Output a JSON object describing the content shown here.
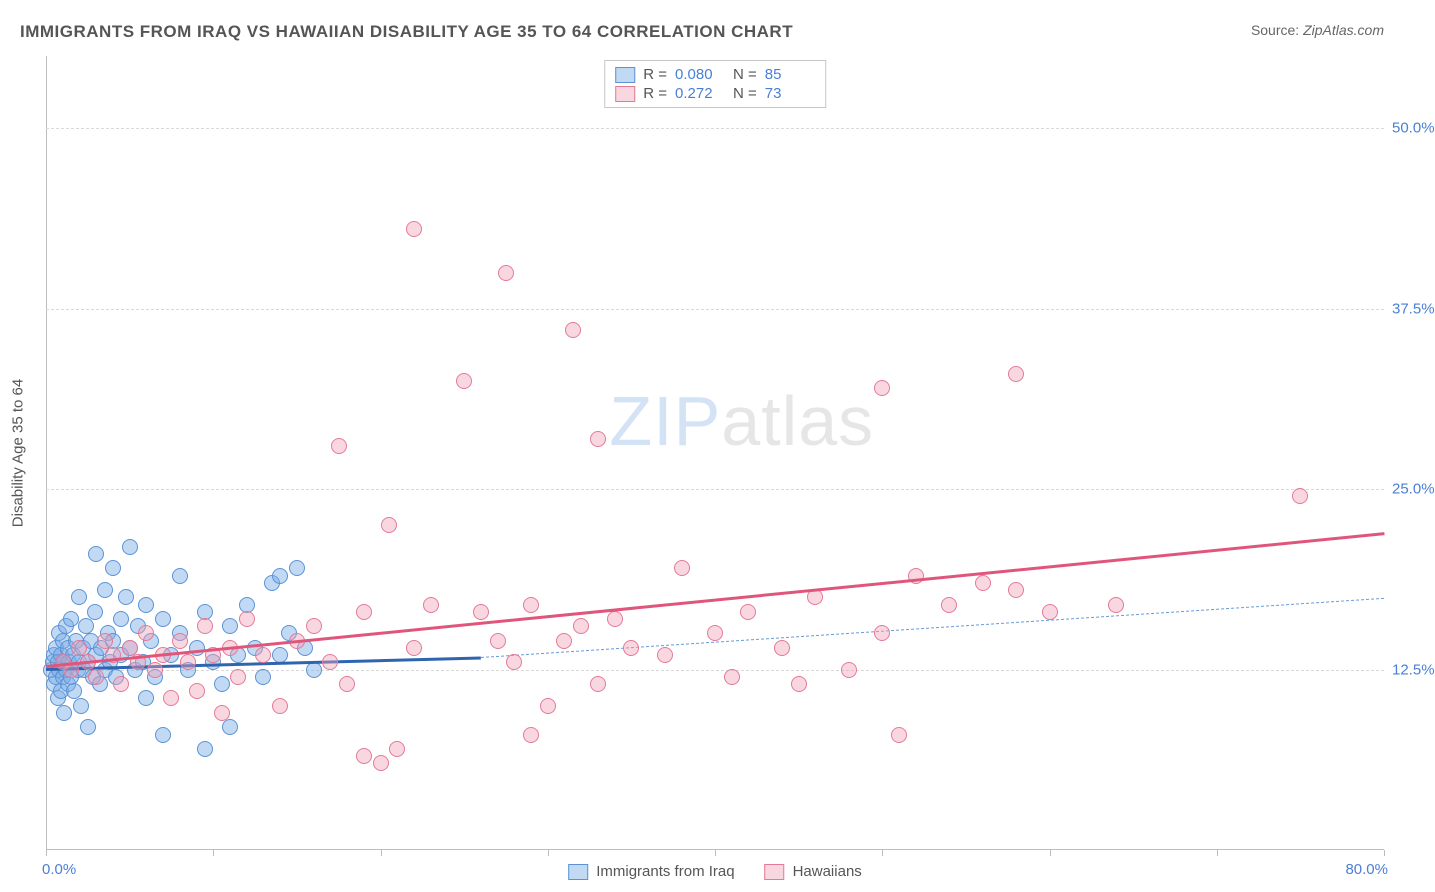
{
  "title": "IMMIGRANTS FROM IRAQ VS HAWAIIAN DISABILITY AGE 35 TO 64 CORRELATION CHART",
  "source_label": "Source:",
  "source_value": "ZipAtlas.com",
  "ylabel": "Disability Age 35 to 64",
  "watermark_a": "ZIP",
  "watermark_b": "atlas",
  "chart": {
    "type": "scatter",
    "background_color": "#ffffff",
    "grid_color": "#d9d9d9",
    "axis_color": "#bdbdbd",
    "xlim": [
      0,
      80
    ],
    "ylim": [
      0,
      55
    ],
    "xticks": [
      0,
      10,
      20,
      30,
      40,
      50,
      60,
      70,
      80
    ],
    "xlim_labels": {
      "min": "0.0%",
      "max": "80.0%"
    },
    "yticks": [
      {
        "v": 12.5,
        "label": "12.5%"
      },
      {
        "v": 25.0,
        "label": "25.0%"
      },
      {
        "v": 37.5,
        "label": "37.5%"
      },
      {
        "v": 50.0,
        "label": "50.0%"
      }
    ],
    "tick_label_color": "#4a7fd6",
    "tick_fontsize": 15,
    "marker_radius": 8,
    "marker_border_width": 1.5,
    "series": [
      {
        "key": "iraq",
        "label": "Immigrants from Iraq",
        "fill": "rgba(120,170,230,0.45)",
        "stroke": "#5b93d6",
        "R": "0.080",
        "N": "85",
        "trend": {
          "x1": 0,
          "y1": 12.6,
          "x2": 26,
          "y2": 13.4,
          "color": "#2f64b0",
          "width": 3,
          "dash": false
        },
        "trend_ext": {
          "x1": 26,
          "y1": 13.4,
          "x2": 80,
          "y2": 17.5,
          "color": "#6a9bd8",
          "width": 1.5,
          "dash": true
        },
        "points": [
          [
            0.3,
            12.5
          ],
          [
            0.4,
            13.0
          ],
          [
            0.5,
            11.5
          ],
          [
            0.5,
            13.5
          ],
          [
            0.6,
            12.0
          ],
          [
            0.6,
            14.0
          ],
          [
            0.7,
            10.5
          ],
          [
            0.7,
            13.0
          ],
          [
            0.8,
            12.5
          ],
          [
            0.8,
            15.0
          ],
          [
            0.9,
            11.0
          ],
          [
            0.9,
            13.5
          ],
          [
            1.0,
            12.0
          ],
          [
            1.0,
            14.5
          ],
          [
            1.1,
            13.0
          ],
          [
            1.1,
            9.5
          ],
          [
            1.2,
            12.5
          ],
          [
            1.2,
            15.5
          ],
          [
            1.3,
            11.5
          ],
          [
            1.3,
            14.0
          ],
          [
            1.4,
            13.0
          ],
          [
            1.5,
            12.0
          ],
          [
            1.5,
            16.0
          ],
          [
            1.6,
            13.5
          ],
          [
            1.7,
            11.0
          ],
          [
            1.8,
            14.5
          ],
          [
            1.9,
            12.5
          ],
          [
            2.0,
            13.0
          ],
          [
            2.0,
            17.5
          ],
          [
            2.1,
            10.0
          ],
          [
            2.2,
            14.0
          ],
          [
            2.3,
            12.5
          ],
          [
            2.4,
            15.5
          ],
          [
            2.5,
            13.0
          ],
          [
            2.5,
            8.5
          ],
          [
            2.7,
            14.5
          ],
          [
            2.8,
            12.0
          ],
          [
            2.9,
            16.5
          ],
          [
            3.0,
            13.5
          ],
          [
            3.0,
            20.5
          ],
          [
            3.2,
            11.5
          ],
          [
            3.3,
            14.0
          ],
          [
            3.5,
            12.5
          ],
          [
            3.5,
            18.0
          ],
          [
            3.7,
            15.0
          ],
          [
            3.8,
            13.0
          ],
          [
            4.0,
            14.5
          ],
          [
            4.0,
            19.5
          ],
          [
            4.2,
            12.0
          ],
          [
            4.5,
            16.0
          ],
          [
            4.5,
            13.5
          ],
          [
            4.8,
            17.5
          ],
          [
            5.0,
            14.0
          ],
          [
            5.0,
            21.0
          ],
          [
            5.3,
            12.5
          ],
          [
            5.5,
            15.5
          ],
          [
            5.8,
            13.0
          ],
          [
            6.0,
            17.0
          ],
          [
            6.0,
            10.5
          ],
          [
            6.3,
            14.5
          ],
          [
            6.5,
            12.0
          ],
          [
            7.0,
            16.0
          ],
          [
            7.0,
            8.0
          ],
          [
            7.5,
            13.5
          ],
          [
            8.0,
            15.0
          ],
          [
            8.0,
            19.0
          ],
          [
            8.5,
            12.5
          ],
          [
            9.0,
            14.0
          ],
          [
            9.5,
            16.5
          ],
          [
            9.5,
            7.0
          ],
          [
            10.0,
            13.0
          ],
          [
            10.5,
            11.5
          ],
          [
            11.0,
            15.5
          ],
          [
            11.0,
            8.5
          ],
          [
            11.5,
            13.5
          ],
          [
            12.0,
            17.0
          ],
          [
            12.5,
            14.0
          ],
          [
            13.0,
            12.0
          ],
          [
            13.5,
            18.5
          ],
          [
            14.0,
            13.5
          ],
          [
            14.5,
            15.0
          ],
          [
            15.0,
            19.5
          ],
          [
            15.5,
            14.0
          ],
          [
            16.0,
            12.5
          ],
          [
            14.0,
            19.0
          ]
        ]
      },
      {
        "key": "hawaiian",
        "label": "Hawaiians",
        "fill": "rgba(240,160,180,0.42)",
        "stroke": "#e47a98",
        "R": "0.272",
        "N": "73",
        "trend": {
          "x1": 0,
          "y1": 12.8,
          "x2": 80,
          "y2": 22.0,
          "color": "#e0567b",
          "width": 3,
          "dash": false
        },
        "points": [
          [
            1.0,
            13.0
          ],
          [
            1.5,
            12.5
          ],
          [
            2.0,
            14.0
          ],
          [
            2.5,
            13.0
          ],
          [
            3.0,
            12.0
          ],
          [
            3.5,
            14.5
          ],
          [
            4.0,
            13.5
          ],
          [
            4.5,
            11.5
          ],
          [
            5.0,
            14.0
          ],
          [
            5.5,
            13.0
          ],
          [
            6.0,
            15.0
          ],
          [
            6.5,
            12.5
          ],
          [
            7.0,
            13.5
          ],
          [
            7.5,
            10.5
          ],
          [
            8.0,
            14.5
          ],
          [
            8.5,
            13.0
          ],
          [
            9.0,
            11.0
          ],
          [
            9.5,
            15.5
          ],
          [
            10.0,
            13.5
          ],
          [
            10.5,
            9.5
          ],
          [
            11.0,
            14.0
          ],
          [
            11.5,
            12.0
          ],
          [
            12.0,
            16.0
          ],
          [
            13.0,
            13.5
          ],
          [
            14.0,
            10.0
          ],
          [
            15.0,
            14.5
          ],
          [
            16.0,
            15.5
          ],
          [
            17.0,
            13.0
          ],
          [
            18.0,
            11.5
          ],
          [
            17.5,
            28.0
          ],
          [
            19.0,
            16.5
          ],
          [
            19.0,
            6.5
          ],
          [
            20.0,
            6.0
          ],
          [
            20.5,
            22.5
          ],
          [
            21.0,
            7.0
          ],
          [
            22.0,
            14.0
          ],
          [
            23.0,
            17.0
          ],
          [
            22.0,
            43.0
          ],
          [
            25.0,
            32.5
          ],
          [
            26.0,
            16.5
          ],
          [
            27.0,
            14.5
          ],
          [
            27.5,
            40.0
          ],
          [
            28.0,
            13.0
          ],
          [
            29.0,
            17.0
          ],
          [
            29.0,
            8.0
          ],
          [
            30.0,
            10.0
          ],
          [
            31.0,
            14.5
          ],
          [
            31.5,
            36.0
          ],
          [
            32.0,
            15.5
          ],
          [
            33.0,
            11.5
          ],
          [
            34.0,
            16.0
          ],
          [
            35.0,
            14.0
          ],
          [
            33.0,
            28.5
          ],
          [
            37.0,
            13.5
          ],
          [
            38.0,
            19.5
          ],
          [
            40.0,
            15.0
          ],
          [
            41.0,
            12.0
          ],
          [
            42.0,
            16.5
          ],
          [
            44.0,
            14.0
          ],
          [
            45.0,
            11.5
          ],
          [
            46.0,
            17.5
          ],
          [
            48.0,
            12.5
          ],
          [
            50.0,
            15.0
          ],
          [
            50.0,
            32.0
          ],
          [
            51.0,
            8.0
          ],
          [
            52.0,
            19.0
          ],
          [
            54.0,
            17.0
          ],
          [
            56.0,
            18.5
          ],
          [
            58.0,
            18.0
          ],
          [
            58.0,
            33.0
          ],
          [
            60.0,
            16.5
          ],
          [
            64.0,
            17.0
          ],
          [
            75.0,
            24.5
          ]
        ]
      }
    ]
  },
  "legend_top": {
    "R_label": "R =",
    "N_label": "N ="
  },
  "legend_bottom_labels": [
    "Immigrants from Iraq",
    "Hawaiians"
  ]
}
